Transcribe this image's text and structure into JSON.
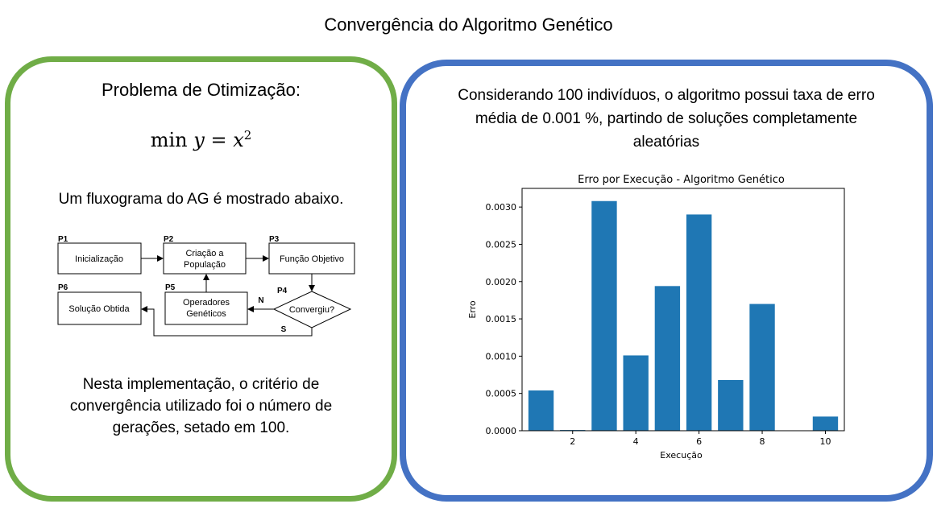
{
  "page_title": "Convergência do Algoritmo Genético",
  "left_panel": {
    "problem_title": "Problema de Otimização:",
    "formula": {
      "op": "min",
      "var": "y",
      "eq": "=",
      "base": "x",
      "exp": "2"
    },
    "flowchart_intro": "Um fluxograma do AG é mostrado abaixo.",
    "flowchart": {
      "nodes": {
        "p1": {
          "id": "P1",
          "label": "Inicialização"
        },
        "p2": {
          "id": "P2",
          "line1": "Criação a",
          "line2": "População"
        },
        "p3": {
          "id": "P3",
          "label": "Função Objetivo"
        },
        "p4": {
          "id": "P4",
          "label": "Convergiu?"
        },
        "p5": {
          "id": "P5",
          "line1": "Operadores",
          "line2": "Genéticos"
        },
        "p6": {
          "id": "P6",
          "label": "Solução Obtida"
        }
      },
      "edge_no": "N",
      "edge_yes": "S"
    },
    "convergence_note": {
      "line1": "Nesta implementação, o critério de",
      "line2": "convergência utilizado foi o número de",
      "line3": "gerações, setado em 100."
    }
  },
  "right_panel": {
    "description": {
      "line1": "Considerando 100 indivíduos, o algoritmo possui taxa de erro",
      "line2": "média  de 0.001 %, partindo de soluções completamente",
      "line3": "aleatórias"
    }
  },
  "chart_data": {
    "type": "bar",
    "title": "Erro por Execução - Algoritmo Genético",
    "xlabel": "Execução",
    "ylabel": "Erro",
    "x": [
      1,
      2,
      3,
      4,
      5,
      6,
      7,
      8,
      9,
      10
    ],
    "values": [
      0.00054,
      1e-05,
      0.00308,
      0.00101,
      0.00194,
      0.0029,
      0.00068,
      0.0017,
      0.0,
      0.00019
    ],
    "ylim": [
      0,
      0.00325
    ],
    "xlim": [
      0.4,
      10.6
    ],
    "xticks": [
      2,
      4,
      6,
      8,
      10
    ],
    "yticks": [
      0,
      0.0005,
      0.001,
      0.0015,
      0.002,
      0.0025,
      0.003
    ],
    "ytick_labels": [
      "0.0000",
      "0.0005",
      "0.0010",
      "0.0015",
      "0.0020",
      "0.0025",
      "0.0030"
    ],
    "bar_color": "#1f77b4",
    "grid": false,
    "legend": "none"
  },
  "colors": {
    "left_border": "#70ad47",
    "right_border": "#4472c4",
    "bar": "#1f77b4"
  }
}
